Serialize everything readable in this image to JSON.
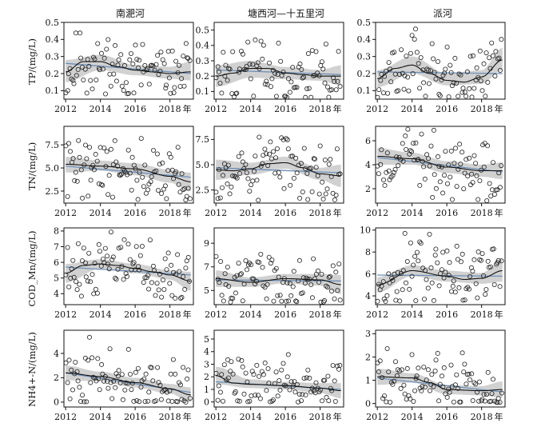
{
  "figure": {
    "column_titles": [
      "南淝河",
      "塘西河—十五里河",
      "派河"
    ],
    "row_labels": [
      "TP/(mg/L)",
      "TN/(mg/L)",
      "COD_Mn/(mg/L)",
      "NH4+-N/(mg/L)"
    ],
    "x_unit_label": "年",
    "x_tick_labels": [
      "2012",
      "2014",
      "2016",
      "2018"
    ]
  },
  "chart_data": [
    {
      "type": "scatter",
      "station": "南淝河",
      "variable": "TP/(mg/L)",
      "xlim": [
        2011.9,
        2019.35
      ],
      "ylim": [
        0.05,
        0.5
      ],
      "yticks": [
        0.1,
        0.2,
        0.3,
        0.4,
        0.5
      ],
      "seed": 11,
      "scatter": {
        "n": 92,
        "min": 0.08,
        "max": 0.5
      },
      "trend": {
        "x": [
          2012,
          2013,
          2014,
          2015,
          2016,
          2017,
          2018,
          2019.2
        ],
        "y": [
          0.21,
          0.27,
          0.27,
          0.24,
          0.22,
          0.21,
          0.2,
          0.21
        ]
      },
      "band": {
        "x": [
          2012,
          2014,
          2016,
          2018,
          2019.2
        ],
        "lower": [
          0.15,
          0.22,
          0.19,
          0.17,
          0.16
        ],
        "upper": [
          0.28,
          0.31,
          0.25,
          0.24,
          0.27
        ]
      },
      "linear": {
        "y": [
          0.26,
          0.2
        ]
      }
    },
    {
      "type": "scatter",
      "station": "塘西河—十五里河",
      "variable": "TP/(mg/L)",
      "xlim": [
        2011.9,
        2019.35
      ],
      "ylim": [
        0.05,
        0.55
      ],
      "yticks": [
        0.1,
        0.2,
        0.3,
        0.4,
        0.5
      ],
      "seed": 23,
      "scatter": {
        "n": 90,
        "min": 0.06,
        "max": 0.53
      },
      "trend": {
        "x": [
          2012,
          2013,
          2014,
          2015,
          2016,
          2017,
          2018,
          2019.2
        ],
        "y": [
          0.2,
          0.22,
          0.25,
          0.25,
          0.22,
          0.21,
          0.2,
          0.2
        ]
      },
      "band": {
        "x": [
          2012,
          2014,
          2016,
          2018,
          2019.2
        ],
        "lower": [
          0.13,
          0.19,
          0.18,
          0.17,
          0.14
        ],
        "upper": [
          0.27,
          0.3,
          0.26,
          0.24,
          0.27
        ]
      },
      "linear": {
        "y": [
          0.24,
          0.21
        ]
      }
    },
    {
      "type": "scatter",
      "station": "派河",
      "variable": "TP/(mg/L)",
      "xlim": [
        2011.9,
        2019.35
      ],
      "ylim": [
        0.05,
        0.5
      ],
      "yticks": [
        0.1,
        0.2,
        0.3,
        0.4,
        0.5
      ],
      "seed": 37,
      "scatter": {
        "n": 92,
        "min": 0.06,
        "max": 0.49
      },
      "trend": {
        "x": [
          2012,
          2013,
          2014,
          2015,
          2016,
          2017,
          2018,
          2019.2
        ],
        "y": [
          0.17,
          0.23,
          0.25,
          0.2,
          0.16,
          0.15,
          0.18,
          0.28
        ]
      },
      "band": {
        "x": [
          2012,
          2014,
          2016,
          2018,
          2019.2
        ],
        "lower": [
          0.12,
          0.2,
          0.13,
          0.14,
          0.22
        ],
        "upper": [
          0.22,
          0.3,
          0.2,
          0.22,
          0.35
        ]
      },
      "linear": {
        "y": [
          0.21,
          0.2
        ]
      }
    },
    {
      "type": "scatter",
      "station": "南淝河",
      "variable": "TN/(mg/L)",
      "xlim": [
        2011.9,
        2019.35
      ],
      "ylim": [
        1.2,
        9.5
      ],
      "yticks": [
        2.5,
        5.0,
        7.5
      ],
      "seed": 41,
      "scatter": {
        "n": 92,
        "min": 1.5,
        "max": 9.2
      },
      "trend": {
        "x": [
          2012,
          2014,
          2016,
          2018,
          2019.2
        ],
        "y": [
          5.4,
          5.2,
          4.9,
          4.1,
          3.5
        ]
      },
      "band": {
        "x": [
          2012,
          2014,
          2016,
          2018,
          2019.2
        ],
        "lower": [
          4.5,
          4.7,
          4.2,
          3.4,
          2.5
        ],
        "upper": [
          6.2,
          5.8,
          5.5,
          4.8,
          4.5
        ]
      },
      "linear": {
        "y": [
          5.2,
          4.0
        ]
      }
    },
    {
      "type": "scatter",
      "station": "塘西河—十五里河",
      "variable": "TN/(mg/L)",
      "xlim": [
        2011.9,
        2019.35
      ],
      "ylim": [
        1.2,
        8.8
      ],
      "yticks": [
        2.5,
        5.0,
        7.5
      ],
      "seed": 53,
      "scatter": {
        "n": 90,
        "min": 1.4,
        "max": 8.7
      },
      "trend": {
        "x": [
          2012,
          2013,
          2014,
          2015,
          2016,
          2017,
          2018,
          2019.2
        ],
        "y": [
          4.5,
          4.4,
          4.6,
          5.1,
          5.2,
          4.7,
          4.1,
          3.9
        ]
      },
      "band": {
        "x": [
          2012,
          2014,
          2016,
          2018,
          2019.2
        ],
        "lower": [
          3.5,
          4.0,
          4.6,
          3.5,
          2.8
        ],
        "upper": [
          5.5,
          5.2,
          5.8,
          4.7,
          5.0
        ]
      },
      "linear": {
        "y": [
          4.7,
          4.2
        ]
      }
    },
    {
      "type": "scatter",
      "station": "派河",
      "variable": "TN/(mg/L)",
      "xlim": [
        2011.9,
        2019.35
      ],
      "ylim": [
        0.8,
        7.2
      ],
      "yticks": [
        2,
        4,
        6
      ],
      "seed": 67,
      "scatter": {
        "n": 92,
        "min": 1.0,
        "max": 7.0
      },
      "trend": {
        "x": [
          2012,
          2014,
          2016,
          2018,
          2019.2
        ],
        "y": [
          4.7,
          4.5,
          3.8,
          3.5,
          3.5
        ]
      },
      "band": {
        "x": [
          2012,
          2014,
          2016,
          2018,
          2019.2
        ],
        "lower": [
          4.0,
          4.0,
          3.3,
          3.0,
          2.8
        ],
        "upper": [
          5.4,
          5.0,
          4.3,
          4.0,
          4.2
        ]
      },
      "linear": {
        "y": [
          4.6,
          3.4
        ]
      }
    },
    {
      "type": "scatter",
      "station": "南淝河",
      "variable": "COD_Mn/(mg/L)",
      "xlim": [
        2011.9,
        2019.35
      ],
      "ylim": [
        3.3,
        8.2
      ],
      "yticks": [
        4,
        5,
        6,
        7,
        8
      ],
      "seed": 71,
      "scatter": {
        "n": 92,
        "min": 3.7,
        "max": 8.0
      },
      "trend": {
        "x": [
          2012,
          2013,
          2014,
          2015,
          2016,
          2017,
          2018,
          2019.2
        ],
        "y": [
          5.3,
          5.8,
          5.9,
          5.8,
          5.6,
          5.4,
          5.2,
          4.8
        ]
      },
      "band": {
        "x": [
          2012,
          2014,
          2016,
          2018,
          2019.2
        ],
        "lower": [
          4.7,
          5.6,
          5.3,
          4.9,
          4.2
        ],
        "upper": [
          5.9,
          6.2,
          5.9,
          5.5,
          5.4
        ]
      },
      "linear": {
        "y": [
          5.7,
          5.2
        ]
      }
    },
    {
      "type": "scatter",
      "station": "塘西河—十五里河",
      "variable": "COD_Mn/(mg/L)",
      "xlim": [
        2011.9,
        2019.35
      ],
      "ylim": [
        3.8,
        10.3
      ],
      "yticks": [
        5,
        7,
        9
      ],
      "seed": 83,
      "scatter": {
        "n": 90,
        "min": 4.0,
        "max": 10.0
      },
      "trend": {
        "x": [
          2012,
          2014,
          2016,
          2018,
          2019.2
        ],
        "y": [
          6.0,
          5.7,
          6.0,
          5.9,
          5.5
        ]
      },
      "band": {
        "x": [
          2012,
          2014,
          2016,
          2018,
          2019.2
        ],
        "lower": [
          5.3,
          5.3,
          5.6,
          5.4,
          4.7
        ],
        "upper": [
          6.7,
          6.1,
          6.4,
          6.4,
          6.3
        ]
      },
      "linear": {
        "y": [
          5.9,
          5.8
        ]
      }
    },
    {
      "type": "scatter",
      "station": "派河",
      "variable": "COD_Mn/(mg/L)",
      "xlim": [
        2011.9,
        2019.35
      ],
      "ylim": [
        3.2,
        10.2
      ],
      "yticks": [
        4,
        6,
        8,
        10
      ],
      "seed": 97,
      "scatter": {
        "n": 92,
        "min": 3.5,
        "max": 10.0
      },
      "trend": {
        "x": [
          2012,
          2014,
          2016,
          2017,
          2018,
          2019.2
        ],
        "y": [
          5.0,
          6.3,
          5.8,
          5.5,
          5.6,
          6.3
        ]
      },
      "band": {
        "x": [
          2012,
          2014,
          2016,
          2018,
          2019.2
        ],
        "lower": [
          4.3,
          5.8,
          5.3,
          5.1,
          5.3
        ],
        "upper": [
          5.7,
          6.8,
          6.3,
          6.1,
          7.3
        ]
      },
      "linear": {
        "y": [
          5.9,
          5.8
        ]
      }
    },
    {
      "type": "scatter",
      "station": "南淝河",
      "variable": "NH4+-N/(mg/L)",
      "xlim": [
        2011.9,
        2019.35
      ],
      "ylim": [
        -0.4,
        5.9
      ],
      "yticks": [
        0,
        2,
        4
      ],
      "seed": 101,
      "scatter": {
        "n": 92,
        "min": 0.0,
        "max": 5.7
      },
      "trend": {
        "x": [
          2012,
          2014,
          2016,
          2018,
          2019.2
        ],
        "y": [
          2.4,
          2.1,
          1.6,
          1.1,
          0.6
        ]
      },
      "band": {
        "x": [
          2012,
          2014,
          2016,
          2018,
          2019.2
        ],
        "lower": [
          1.8,
          1.7,
          1.2,
          0.7,
          0.0
        ],
        "upper": [
          3.0,
          2.5,
          2.0,
          1.5,
          1.2
        ]
      },
      "linear": {
        "y": [
          2.4,
          0.8
        ]
      }
    },
    {
      "type": "scatter",
      "station": "塘西河—十五里河",
      "variable": "NH4+-N/(mg/L)",
      "xlim": [
        2011.9,
        2019.35
      ],
      "ylim": [
        -0.4,
        5.7
      ],
      "yticks": [
        0,
        1,
        2,
        3,
        4,
        5
      ],
      "seed": 113,
      "scatter": {
        "n": 90,
        "min": 0.0,
        "max": 5.5
      },
      "trend": {
        "x": [
          2012,
          2013,
          2014,
          2016,
          2018,
          2019.2
        ],
        "y": [
          2.1,
          1.5,
          1.4,
          1.3,
          1.1,
          0.9
        ]
      },
      "band": {
        "x": [
          2012,
          2014,
          2016,
          2018,
          2019.2
        ],
        "lower": [
          1.4,
          1.1,
          1.0,
          0.7,
          0.3
        ],
        "upper": [
          2.8,
          1.8,
          1.6,
          1.5,
          1.5
        ]
      },
      "linear": {
        "y": [
          1.6,
          1.0
        ]
      }
    },
    {
      "type": "scatter",
      "station": "派河",
      "variable": "NH4+-N/(mg/L)",
      "xlim": [
        2011.9,
        2019.35
      ],
      "ylim": [
        -0.15,
        3.15
      ],
      "yticks": [
        0,
        1,
        2,
        3
      ],
      "seed": 127,
      "scatter": {
        "n": 92,
        "min": 0.05,
        "max": 3.05
      },
      "trend": {
        "x": [
          2012,
          2014,
          2015,
          2016,
          2018,
          2019.2
        ],
        "y": [
          1.15,
          1.1,
          0.9,
          0.6,
          0.55,
          0.6
        ]
      },
      "band": {
        "x": [
          2012,
          2014,
          2016,
          2018,
          2019.2
        ],
        "lower": [
          0.8,
          0.9,
          0.4,
          0.35,
          0.25
        ],
        "upper": [
          1.5,
          1.3,
          0.8,
          0.75,
          0.95
        ]
      },
      "linear": {
        "y": [
          1.1,
          0.5
        ]
      }
    }
  ],
  "colors": {
    "points": "#222222",
    "trend": "#111111",
    "band": "#c9c9c9",
    "linear": "#6e8fb7",
    "axis": "#111111"
  }
}
